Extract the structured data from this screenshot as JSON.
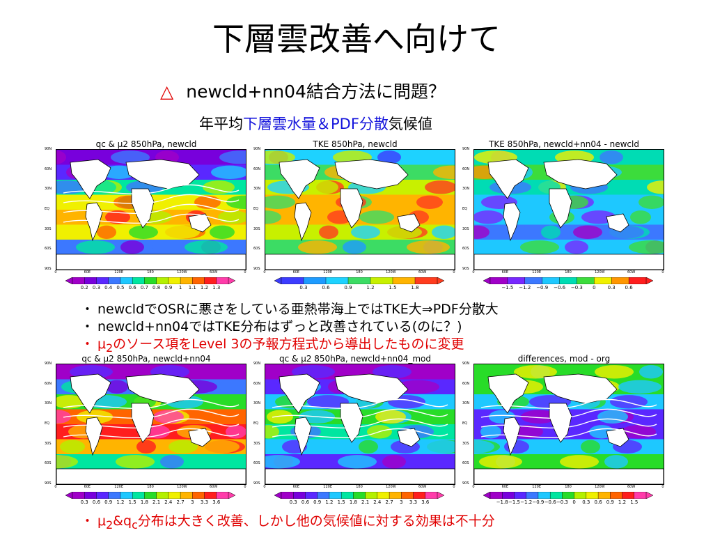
{
  "title": "下層雲改善へ向けて",
  "subtitle": {
    "marker": "△",
    "text": "newcld+nn04結合方法に問題？"
  },
  "subline": {
    "prefix": "年平均",
    "highlight": "下層雲水量＆PDF分散",
    "suffix": "気候値"
  },
  "bullets_mid": [
    {
      "marker": "・",
      "text": "newcldでOSRに悪さをしている亜熱帯海上ではTKE大⇒PDF分散大"
    },
    {
      "marker": "・",
      "text": "newcld+nn04ではTKE分布はずっと改善されている(のに？)"
    },
    {
      "marker": "・",
      "pre": "μ",
      "sub": "2",
      "text": "のソース項をLevel 3の予報方程式から導出したものに変更"
    }
  ],
  "bullet_bottom": {
    "marker": "・",
    "p1": "μ",
    "s1": "2",
    "p2": "&q",
    "s2": "c",
    "text": "分布は大きく改善、しかし他の気候値に対する効果は不十分"
  },
  "colors": {
    "accent_red": "#e00000",
    "highlight_blue": "#1414dc"
  },
  "axes": {
    "lat": [
      "90N",
      "60N",
      "30N",
      "EQ",
      "30S",
      "60S",
      "90S"
    ],
    "lon": [
      "0",
      "60E",
      "120E",
      "180",
      "120W",
      "60W",
      "0"
    ]
  },
  "panels": [
    {
      "title_pre": "qc & ",
      "mu": "μ2",
      "title_post": " 850hPa, newcld",
      "scheme": "qc",
      "ticks": [
        "0.2",
        "0.3",
        "0.4",
        "0.5",
        "0.6",
        "0.7",
        "0.8",
        "0.9",
        "1",
        "1.1",
        "1.2",
        "1.3"
      ]
    },
    {
      "title_pre": "TKE 850hPa, newcld",
      "mu": "",
      "title_post": "",
      "scheme": "tke",
      "ticks": [
        "0.3",
        "0.6",
        "0.9",
        "1.2",
        "1.5",
        "1.8"
      ]
    },
    {
      "title_pre": "TKE 850hPa, newcld+nn04 - newcld",
      "mu": "",
      "title_post": "",
      "scheme": "tkediff",
      "ticks": [
        "−1.5",
        "−1.2",
        "−0.9",
        "−0.6",
        "−0.3",
        "0",
        "0.3",
        "0.6"
      ]
    },
    {
      "title_pre": "qc & ",
      "mu": "μ2",
      "title_post": " 850hPa, newcld+nn04",
      "scheme": "qc2",
      "ticks": [
        "0.3",
        "0.6",
        "0.9",
        "1.2",
        "1.5",
        "1.8",
        "2.1",
        "2.4",
        "2.7",
        "3",
        "3.3",
        "3.6"
      ]
    },
    {
      "title_pre": "qc & ",
      "mu": "μ2",
      "title_post": " 850hPa, newcld+nn04_mod",
      "scheme": "qc3",
      "ticks": [
        "0.3",
        "0.6",
        "0.9",
        "1.2",
        "1.5",
        "1.8",
        "2.1",
        "2.4",
        "2.7",
        "3",
        "3.3",
        "3.6"
      ]
    },
    {
      "title_pre": "differences, mod - org",
      "mu": "",
      "title_post": "",
      "scheme": "diff",
      "ticks": [
        "−1.8",
        "−1.5",
        "−1.2",
        "−0.9",
        "−0.6",
        "−0.3",
        "0",
        "0.3",
        "0.6",
        "0.9",
        "1.2",
        "1.5"
      ]
    }
  ]
}
